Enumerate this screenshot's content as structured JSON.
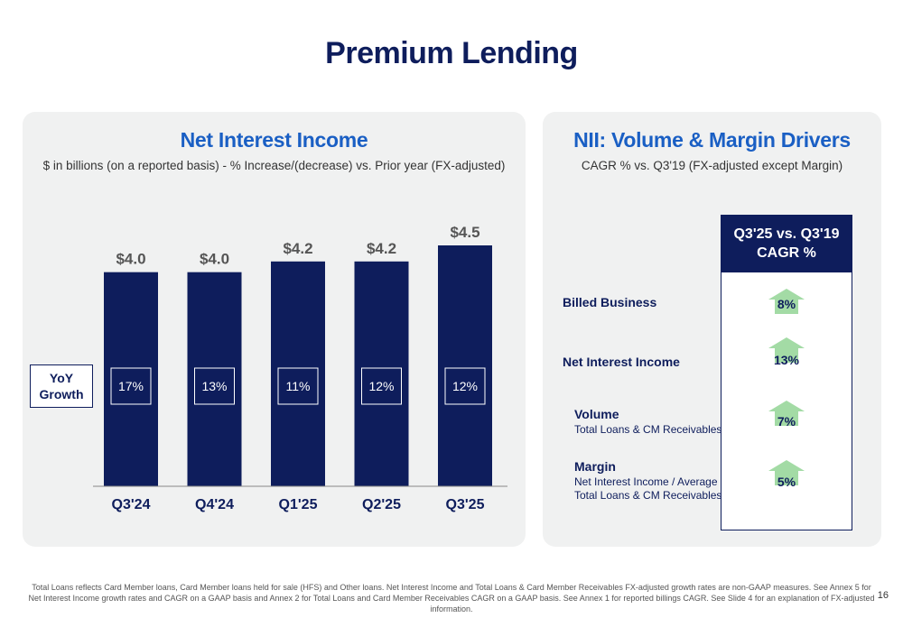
{
  "title": "Premium Lending",
  "left_panel": {
    "title": "Net Interest Income",
    "subtitle": "$ in billions (on a reported basis) - % Increase/(decrease) vs. Prior year (FX-adjusted)",
    "yoy_label_line1": "YoY",
    "yoy_label_line2": "Growth"
  },
  "chart_data": {
    "type": "bar",
    "title": "Net Interest Income",
    "subtitle": "$ in billions (on a reported basis) - % Increase/(decrease) vs. Prior year (FX-adjusted)",
    "categories": [
      "Q3'24",
      "Q4'24",
      "Q1'25",
      "Q2'25",
      "Q3'25"
    ],
    "values": [
      4.0,
      4.0,
      4.2,
      4.2,
      4.5
    ],
    "value_labels": [
      "$4.0",
      "$4.0",
      "$4.2",
      "$4.2",
      "$4.5"
    ],
    "yoy_growth": [
      "17%",
      "13%",
      "11%",
      "12%",
      "12%"
    ],
    "ylim": [
      0,
      4.5
    ],
    "grid": false,
    "bar_color": "#0e1d5c"
  },
  "right_panel": {
    "title": "NII: Volume & Margin Drivers",
    "subtitle": "CAGR % vs. Q3'19 (FX-adjusted except Margin)",
    "header_line1": "Q3'25 vs. Q3'19",
    "header_line2": "CAGR %",
    "drivers": [
      {
        "label": "Billed Business",
        "sub1": "",
        "sub2": "",
        "value": "8%"
      },
      {
        "label": "Net Interest Income",
        "sub1": "",
        "sub2": "",
        "value": "13%"
      },
      {
        "label": "Volume",
        "sub1": "Total Loans & CM Receivables",
        "sub2": "",
        "value": "7%"
      },
      {
        "label": "Margin",
        "sub1": "Net Interest Income / Average",
        "sub2": "Total Loans & CM Receivables",
        "value": "5%"
      }
    ],
    "arrow_color": "#a3dba5"
  },
  "footnote": "Total Loans reflects Card Member loans, Card Member loans held for sale (HFS) and Other loans. Net Interest Income and Total Loans & Card Member Receivables FX-adjusted growth rates are non-GAAP measures. See Annex 5 for Net Interest Income growth rates and CAGR on a GAAP basis and Annex 2 for Total Loans and Card Member Receivables CAGR on a GAAP basis. See Annex 1 for reported billings CAGR. See Slide 4 for an explanation of FX-adjusted information.",
  "page_number": "16"
}
